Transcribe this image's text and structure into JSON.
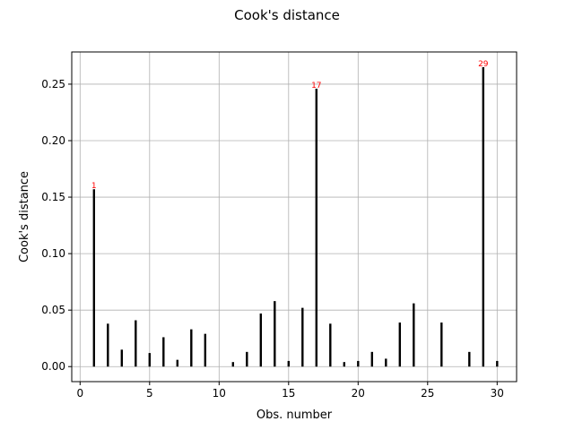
{
  "chart_data": {
    "type": "bar",
    "title": "Cook's distance",
    "xlabel": "Obs. number",
    "ylabel": "Cook's distance",
    "xlim": [
      -0.6,
      31.4
    ],
    "ylim": [
      -0.0133,
      0.2785
    ],
    "grid": true,
    "x_ticks": [
      0,
      5,
      10,
      15,
      20,
      25,
      30
    ],
    "x_tick_labels": [
      "0",
      "5",
      "10",
      "15",
      "20",
      "25",
      "30"
    ],
    "y_ticks": [
      0.0,
      0.05,
      0.1,
      0.15,
      0.2,
      0.25
    ],
    "y_tick_labels": [
      "0.00",
      "0.05",
      "0.10",
      "0.15",
      "0.20",
      "0.25"
    ],
    "x": [
      1,
      2,
      3,
      4,
      5,
      6,
      7,
      8,
      9,
      10,
      11,
      12,
      13,
      14,
      15,
      16,
      17,
      18,
      19,
      20,
      21,
      22,
      23,
      24,
      25,
      26,
      27,
      28,
      29,
      30
    ],
    "values": [
      0.157,
      0.038,
      0.015,
      0.041,
      0.012,
      0.026,
      0.006,
      0.033,
      0.029,
      0.0,
      0.004,
      0.013,
      0.047,
      0.058,
      0.005,
      0.052,
      0.246,
      0.038,
      0.004,
      0.005,
      0.013,
      0.007,
      0.039,
      0.056,
      0.0,
      0.039,
      0.0,
      0.013,
      0.265,
      0.005
    ],
    "annotations": [
      {
        "x": 1,
        "y": 0.157,
        "text": "1"
      },
      {
        "x": 17,
        "y": 0.246,
        "text": "17"
      },
      {
        "x": 29,
        "y": 0.265,
        "text": "29"
      }
    ],
    "colors": {
      "stem": "#000000",
      "annotation": "#ff0000",
      "grid": "#b0b0b0"
    }
  }
}
